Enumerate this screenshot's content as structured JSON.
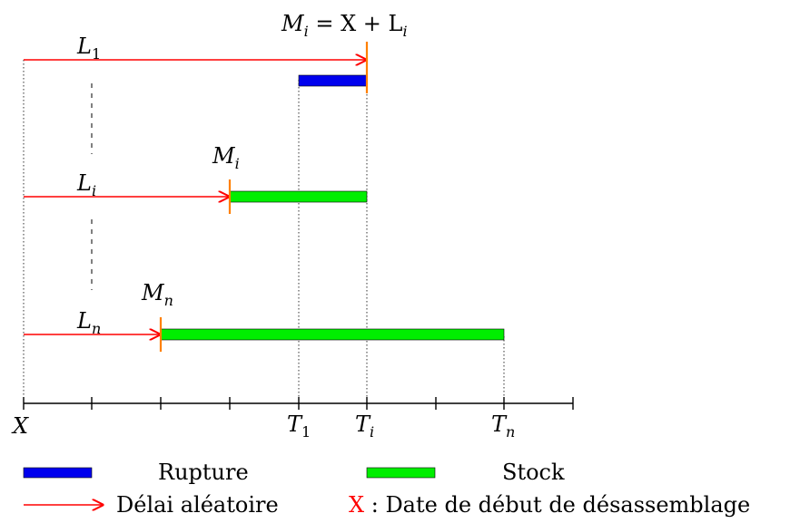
{
  "title": {
    "formula": "M",
    "sub_i": "i",
    "eq": " = X + L",
    "sub_i2": "i"
  },
  "rows": [
    {
      "arrow_label": "L",
      "arrow_sub": "1",
      "bar_kind": "rupture"
    },
    {
      "arrow_label": "L",
      "arrow_sub": "i",
      "marker_label": "M",
      "marker_sub": "i",
      "bar_kind": "stock"
    },
    {
      "arrow_label": "L",
      "arrow_sub": "n",
      "marker_label": "M",
      "marker_sub": "n",
      "bar_kind": "stock"
    }
  ],
  "axis": {
    "x_label": "X",
    "t1": {
      "main": "T",
      "sub": "1"
    },
    "ti": {
      "main": "T",
      "sub": "i"
    },
    "tn": {
      "main": "T",
      "sub": "n"
    }
  },
  "legend": {
    "rupture": "Rupture",
    "stock": "Stock",
    "delay": "Délai aléatoire",
    "x_marker": "X",
    "x_desc": " : Date de début de désassemblage"
  },
  "colors": {
    "rupture": "#0000ee",
    "stock": "#00ee00",
    "arrow": "#ff0000",
    "marker": "#ff8000",
    "x_legend": "#ff0000"
  }
}
